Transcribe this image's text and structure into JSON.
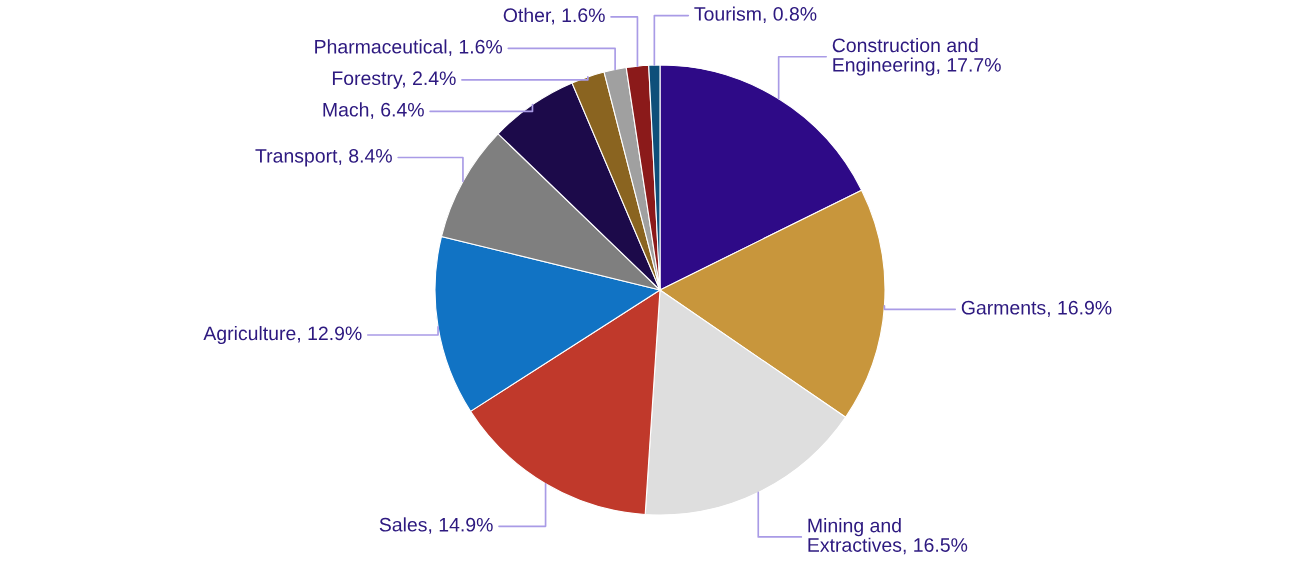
{
  "chart_data": {
    "type": "pie",
    "categories": [
      "Construction and Engineering",
      "Garments",
      "Mining and Extractives",
      "Sales",
      "Agriculture",
      "Transport",
      "Mach",
      "Forestry",
      "Pharmaceutical",
      "Other",
      "Tourism"
    ],
    "values": [
      17.7,
      16.9,
      16.5,
      14.9,
      12.9,
      8.4,
      6.4,
      2.4,
      1.6,
      1.6,
      0.8
    ],
    "value_labels": [
      "17.7%",
      "16.9%",
      "16.5%",
      "14.9%",
      "12.9%",
      "8.4%",
      "6.4%",
      "2.4%",
      "1.6%",
      "1.6%",
      "0.8%"
    ],
    "colors": [
      "#2e0a87",
      "#c8963c",
      "#dedede",
      "#c0392b",
      "#1173c4",
      "#7f7f7f",
      "#1c0a4a",
      "#8a6420",
      "#a0a0a0",
      "#8b1a1a",
      "#0e4f7a"
    ],
    "legend": false
  }
}
